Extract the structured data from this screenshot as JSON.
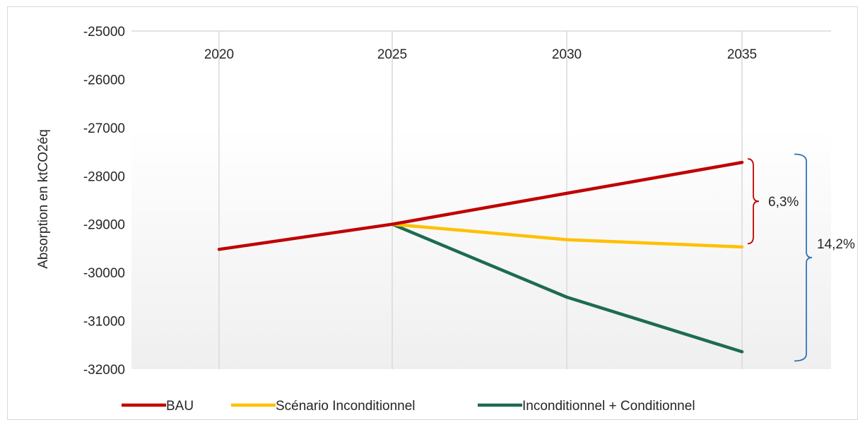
{
  "chart_data": {
    "type": "line",
    "title": "",
    "xlabel": "",
    "ylabel": "Absorption en ktCO2éq",
    "x": [
      "2020",
      "2025",
      "2030",
      "2035"
    ],
    "ylim": [
      -32000,
      -25000
    ],
    "yticks": [
      -25000,
      -26000,
      -27000,
      -28000,
      -29000,
      -30000,
      -31000,
      -32000
    ],
    "y_reversed": true,
    "x_axis_position": "top",
    "grid": "vertical",
    "legend_position": "bottom",
    "series": [
      {
        "name": "BAU",
        "color": "#c00000",
        "values": [
          -29520,
          -29000,
          -28360,
          -27720
        ]
      },
      {
        "name": "Scénario Inconditionnel",
        "color": "#ffc000",
        "values": [
          null,
          -29000,
          -29320,
          -29470
        ]
      },
      {
        "name": "Inconditionnel + Conditionnel",
        "color": "#1e6b52",
        "values": [
          null,
          -29000,
          -30510,
          -31640
        ]
      }
    ],
    "annotations": [
      {
        "label": "6,3%",
        "from": -27720,
        "to": -29330,
        "color": "#c00000"
      },
      {
        "label": "14,2%",
        "from": -27550,
        "to": -31830,
        "color": "#2e75b6"
      }
    ]
  }
}
